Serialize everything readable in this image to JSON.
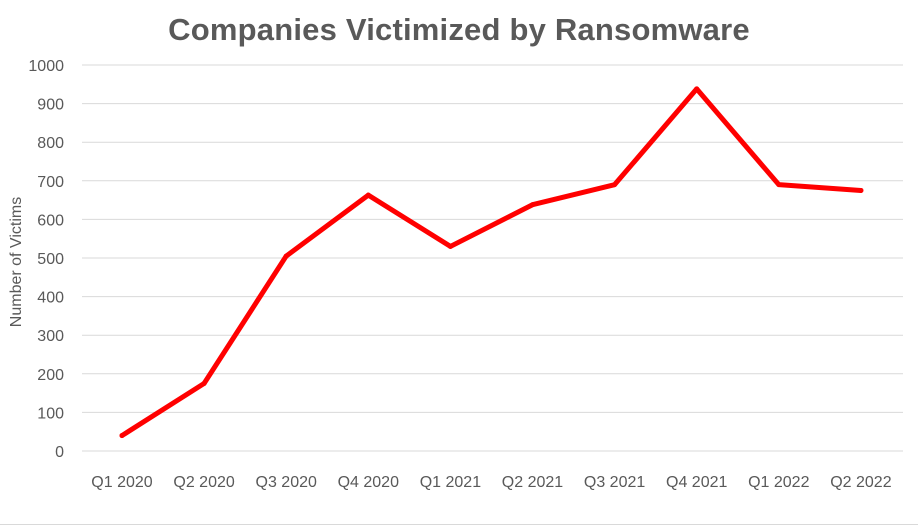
{
  "chart_data": {
    "type": "line",
    "title": "Companies Victimized by Ransomware",
    "xlabel": "",
    "ylabel": "Number of Victims",
    "categories": [
      "Q1 2020",
      "Q2 2020",
      "Q3 2020",
      "Q4 2020",
      "Q1 2021",
      "Q2 2021",
      "Q3 2021",
      "Q4 2021",
      "Q1 2022",
      "Q2 2022"
    ],
    "series": [
      {
        "values": [
          40,
          175,
          505,
          663,
          530,
          638,
          690,
          938,
          690,
          675
        ],
        "color": "#ff0000"
      }
    ],
    "ylim": [
      0,
      1000
    ],
    "yticks": [
      0,
      100,
      200,
      300,
      400,
      500,
      600,
      700,
      800,
      900,
      1000
    ],
    "grid": "horizontal",
    "gridColor": "#d9d9d9",
    "legend": "none"
  }
}
